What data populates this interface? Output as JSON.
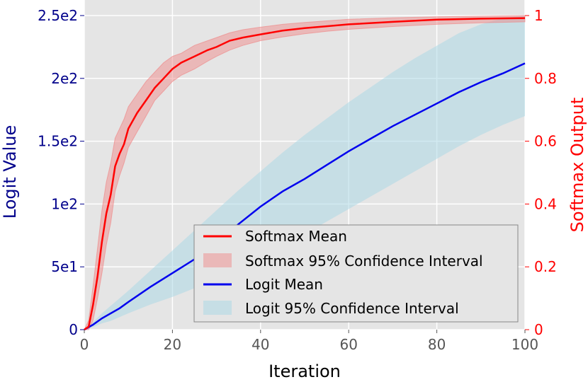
{
  "chart_data": {
    "type": "line",
    "xlabel": "Iteration",
    "ylabel_left": "Logit Value",
    "ylabel_right": "Softmax Output",
    "xlim": [
      0,
      100
    ],
    "ylim_left": [
      0,
      250
    ],
    "ylim_right": [
      0,
      1
    ],
    "x_ticks": [
      0,
      20,
      40,
      60,
      80,
      100
    ],
    "x_tick_labels": [
      "0",
      "20",
      "40",
      "60",
      "80",
      "100"
    ],
    "y_left_ticks": [
      0,
      50,
      100,
      150,
      200,
      250
    ],
    "y_left_tick_labels": [
      "0",
      "5e1",
      "1e2",
      "1.5e2",
      "2e2",
      "2.5e2"
    ],
    "y_right_ticks": [
      0,
      0.2,
      0.4,
      0.6,
      0.8,
      1
    ],
    "y_right_tick_labels": [
      "0",
      "0.2",
      "0.4",
      "0.6",
      "0.8",
      "1"
    ],
    "grid": true,
    "legend_position": "lower-right",
    "colors": {
      "softmax": "#ff0000",
      "softmax_band": "#f08080",
      "logit": "#0000ee",
      "logit_band": "#add8e6",
      "left_axis": "#00008b",
      "right_axis": "#ff0000",
      "plot_bg": "#e5e5e5"
    },
    "series": [
      {
        "name": "Softmax Mean",
        "axis": "right",
        "x": [
          0,
          1,
          2,
          3,
          4,
          5,
          6,
          7,
          8,
          9,
          10,
          12,
          14,
          16,
          18,
          20,
          22,
          25,
          28,
          30,
          33,
          36,
          40,
          45,
          50,
          55,
          60,
          70,
          80,
          90,
          100
        ],
        "values": [
          0,
          0.01,
          0.08,
          0.17,
          0.28,
          0.37,
          0.43,
          0.52,
          0.56,
          0.59,
          0.64,
          0.69,
          0.73,
          0.77,
          0.8,
          0.83,
          0.85,
          0.87,
          0.89,
          0.9,
          0.92,
          0.93,
          0.94,
          0.952,
          0.96,
          0.966,
          0.972,
          0.98,
          0.987,
          0.99,
          0.992
        ]
      },
      {
        "name": "Softmax 95% Confidence Interval",
        "axis": "right",
        "x": [
          0,
          1,
          2,
          3,
          4,
          5,
          6,
          7,
          8,
          9,
          10,
          12,
          14,
          16,
          18,
          20,
          22,
          25,
          28,
          30,
          33,
          36,
          40,
          45,
          50,
          55,
          60,
          70,
          80,
          90,
          100
        ],
        "lower": [
          0,
          0,
          0.03,
          0.1,
          0.18,
          0.27,
          0.34,
          0.44,
          0.49,
          0.53,
          0.58,
          0.63,
          0.68,
          0.73,
          0.76,
          0.79,
          0.81,
          0.83,
          0.855,
          0.87,
          0.89,
          0.905,
          0.92,
          0.932,
          0.942,
          0.95,
          0.956,
          0.965,
          0.972,
          0.977,
          0.98
        ],
        "upper": [
          0,
          0.03,
          0.14,
          0.26,
          0.38,
          0.47,
          0.53,
          0.61,
          0.64,
          0.67,
          0.71,
          0.75,
          0.79,
          0.82,
          0.85,
          0.87,
          0.88,
          0.905,
          0.92,
          0.93,
          0.945,
          0.955,
          0.963,
          0.972,
          0.978,
          0.983,
          0.988,
          0.993,
          0.996,
          0.998,
          1.0
        ]
      },
      {
        "name": "Logit Mean",
        "axis": "left",
        "x": [
          0,
          2,
          4,
          6,
          8,
          10,
          15,
          20,
          25,
          30,
          35,
          40,
          45,
          50,
          55,
          60,
          65,
          70,
          75,
          80,
          85,
          90,
          95,
          100
        ],
        "values": [
          0,
          4,
          9,
          13,
          17,
          22,
          34,
          45,
          56,
          69,
          84,
          98,
          110,
          120,
          131,
          142,
          152,
          162,
          171,
          180,
          189,
          197,
          204,
          212
        ]
      },
      {
        "name": "Logit 95% Confidence Interval",
        "axis": "left",
        "x": [
          0,
          2,
          4,
          6,
          8,
          10,
          15,
          20,
          25,
          30,
          35,
          40,
          45,
          50,
          55,
          60,
          65,
          70,
          75,
          80,
          85,
          90,
          95,
          100
        ],
        "lower": [
          0,
          2,
          5,
          7,
          10,
          13,
          20,
          26,
          33,
          40,
          49,
          58,
          67,
          76,
          86,
          96,
          106,
          116,
          126,
          136,
          146,
          155,
          163,
          170
        ],
        "upper": [
          0,
          6,
          13,
          19,
          25,
          31,
          47,
          63,
          79,
          95,
          111,
          126,
          141,
          155,
          168,
          181,
          193,
          205,
          216,
          226,
          236,
          243,
          248,
          250
        ]
      }
    ]
  }
}
